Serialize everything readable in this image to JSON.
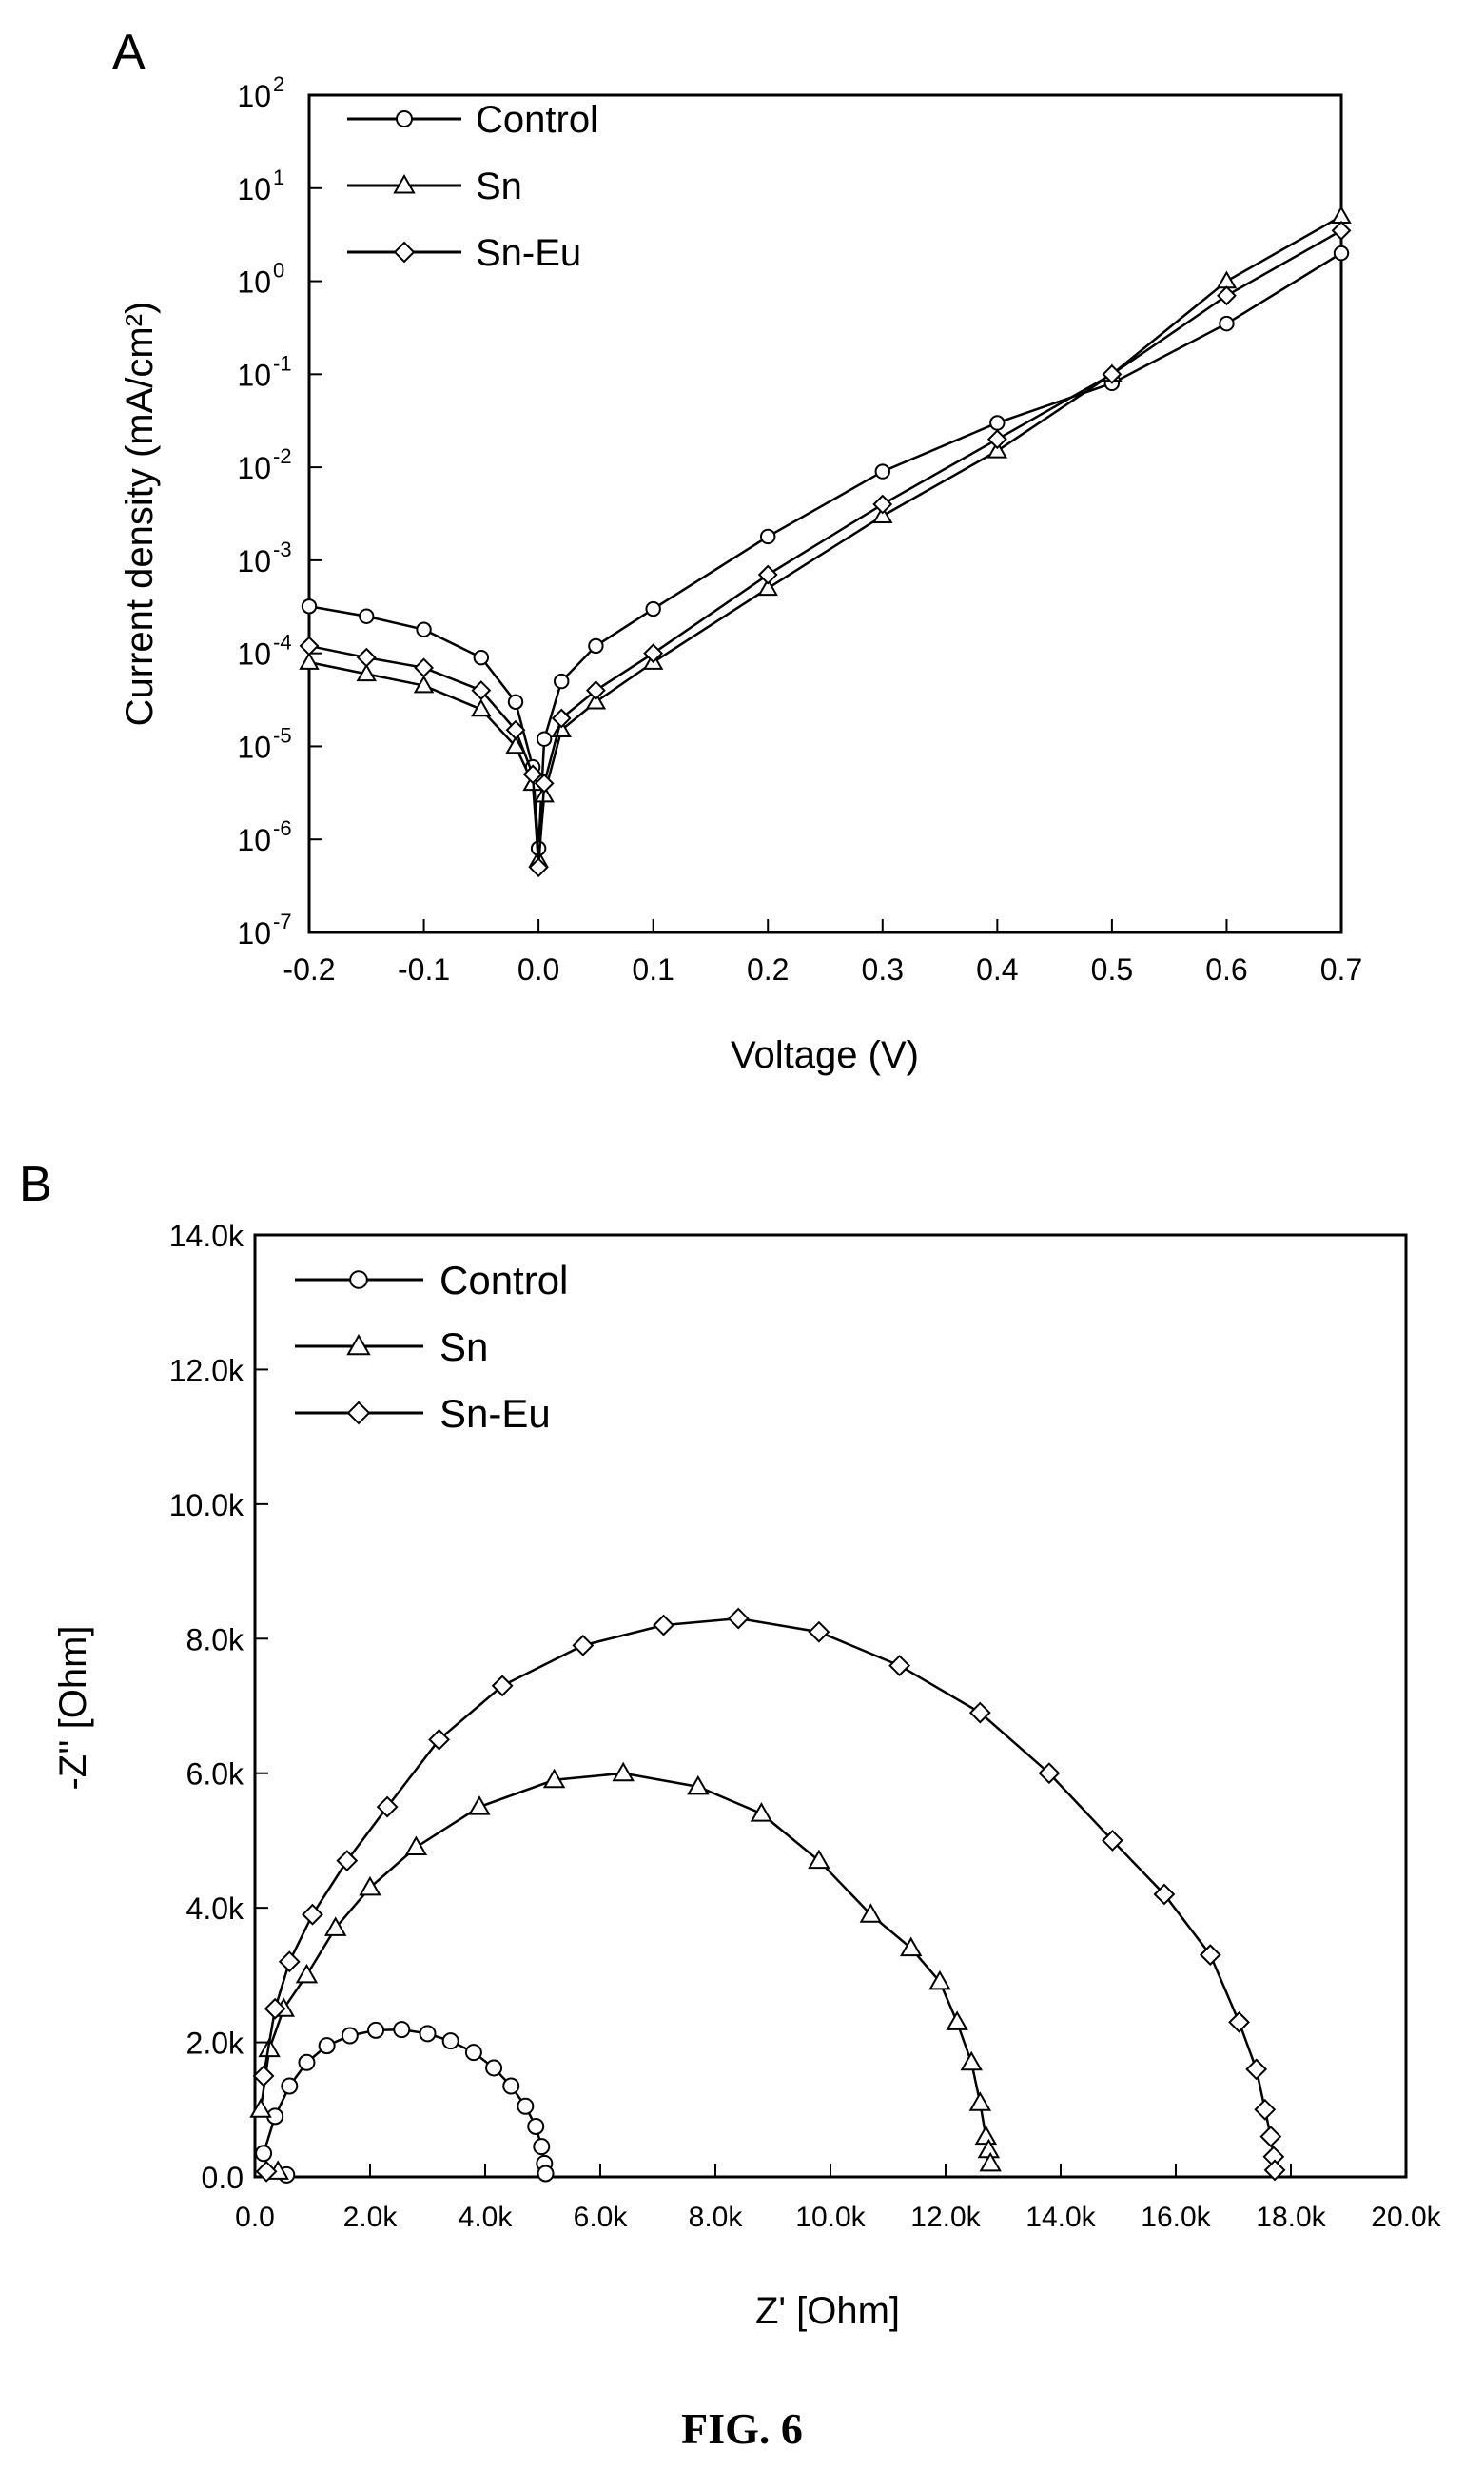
{
  "figure_caption": "FIG. 6",
  "chart_data": [
    {
      "panel_label": "A",
      "type": "line",
      "xlabel": "Voltage (V)",
      "ylabel": "Current density (mA/cm²)",
      "xlim": [
        -0.2,
        0.7
      ],
      "ylim": [
        1e-07,
        100
      ],
      "y_scale": "log",
      "x_ticks": [
        -0.2,
        -0.1,
        0.0,
        0.1,
        0.2,
        0.3,
        0.4,
        0.5,
        0.6,
        0.7
      ],
      "x_tick_labels": [
        "-0.2",
        "-0.1",
        "0.0",
        "0.1",
        "0.2",
        "0.3",
        "0.4",
        "0.5",
        "0.6",
        "0.7"
      ],
      "y_ticks": [
        1e-07,
        1e-06,
        1e-05,
        0.0001,
        0.001,
        0.01,
        0.1,
        1,
        10,
        100
      ],
      "y_tick_exponents": [
        "-7",
        "-6",
        "-5",
        "-4",
        "-3",
        "-2",
        "-1",
        "0",
        "1",
        "2"
      ],
      "y_tick_base": "10",
      "legend_position": "top-left",
      "series": [
        {
          "name": "Control",
          "marker": "circle",
          "x": [
            -0.2,
            -0.15,
            -0.1,
            -0.05,
            -0.02,
            -0.005,
            0.0,
            0.005,
            0.02,
            0.05,
            0.1,
            0.2,
            0.3,
            0.4,
            0.5,
            0.6,
            0.7
          ],
          "y": [
            0.00032,
            0.00025,
            0.00018,
            9e-05,
            3e-05,
            6e-06,
            8e-07,
            1.2e-05,
            5e-05,
            0.00012,
            0.0003,
            0.0018,
            0.009,
            0.03,
            0.08,
            0.35,
            2.0
          ]
        },
        {
          "name": "Sn",
          "marker": "triangle",
          "x": [
            -0.2,
            -0.15,
            -0.1,
            -0.05,
            -0.02,
            -0.005,
            0.0,
            0.005,
            0.02,
            0.05,
            0.1,
            0.2,
            0.3,
            0.4,
            0.5,
            0.6,
            0.7
          ],
          "y": [
            8e-05,
            6e-05,
            4.5e-05,
            2.5e-05,
            1e-05,
            4e-06,
            6e-07,
            3e-06,
            1.5e-05,
            3e-05,
            8e-05,
            0.0005,
            0.003,
            0.015,
            0.1,
            1.0,
            5.0
          ]
        },
        {
          "name": "Sn-Eu",
          "marker": "diamond",
          "x": [
            -0.2,
            -0.15,
            -0.1,
            -0.05,
            -0.02,
            -0.005,
            0.0,
            0.005,
            0.02,
            0.05,
            0.1,
            0.2,
            0.3,
            0.4,
            0.5,
            0.6,
            0.7
          ],
          "y": [
            0.00012,
            9e-05,
            7e-05,
            4e-05,
            1.5e-05,
            5e-06,
            5e-07,
            4e-06,
            2e-05,
            4e-05,
            0.0001,
            0.0007,
            0.004,
            0.02,
            0.1,
            0.7,
            3.5
          ]
        }
      ]
    },
    {
      "panel_label": "B",
      "type": "scatter",
      "xlabel": "Z' [Ohm]",
      "ylabel": "-Z'' [Ohm]",
      "xlim": [
        0,
        20000
      ],
      "ylim": [
        0,
        14000
      ],
      "x_ticks": [
        0,
        2000,
        4000,
        6000,
        8000,
        10000,
        12000,
        14000,
        16000,
        18000,
        20000
      ],
      "x_tick_labels": [
        "0.0",
        "2.0k",
        "4.0k",
        "6.0k",
        "8.0k",
        "10.0k",
        "12.0k",
        "14.0k",
        "16.0k",
        "18.0k",
        "20.0k"
      ],
      "y_ticks": [
        0,
        2000,
        4000,
        6000,
        8000,
        10000,
        12000,
        14000
      ],
      "y_tick_labels": [
        "0.0",
        "2.0k",
        "4.0k",
        "6.0k",
        "8.0k",
        "10.0k",
        "12.0k",
        "14.0k"
      ],
      "legend_position": "top-left",
      "series": [
        {
          "name": "Control",
          "marker": "circle",
          "x": [
            150,
            350,
            600,
            900,
            1250,
            1650,
            2100,
            2550,
            3000,
            3400,
            3800,
            4150,
            4450,
            4700,
            4880,
            4980,
            5030,
            5050,
            550
          ],
          "y": [
            350,
            900,
            1350,
            1700,
            1950,
            2100,
            2180,
            2190,
            2130,
            2020,
            1850,
            1620,
            1350,
            1050,
            750,
            450,
            200,
            50,
            30
          ]
        },
        {
          "name": "Sn",
          "marker": "triangle",
          "x": [
            100,
            250,
            500,
            900,
            1400,
            2000,
            2800,
            3900,
            5200,
            6400,
            7700,
            8800,
            9800,
            10700,
            11400,
            11900,
            12200,
            12450,
            12600,
            12700,
            12750,
            12780,
            400
          ],
          "y": [
            1000,
            1900,
            2500,
            3000,
            3700,
            4300,
            4900,
            5500,
            5900,
            6000,
            5800,
            5400,
            4700,
            3900,
            3400,
            2900,
            2300,
            1700,
            1100,
            600,
            400,
            200,
            80
          ]
        },
        {
          "name": "Sn-Eu",
          "marker": "diamond",
          "x": [
            150,
            350,
            600,
            1000,
            1600,
            2300,
            3200,
            4300,
            5700,
            7100,
            8400,
            9800,
            11200,
            12600,
            13800,
            14900,
            15800,
            16600,
            17100,
            17400,
            17550,
            17650,
            17700,
            17720,
            200
          ],
          "y": [
            1500,
            2500,
            3200,
            3900,
            4700,
            5500,
            6500,
            7300,
            7900,
            8200,
            8300,
            8100,
            7600,
            6900,
            6000,
            5000,
            4200,
            3300,
            2300,
            1600,
            1000,
            600,
            300,
            100,
            80
          ]
        }
      ]
    }
  ]
}
